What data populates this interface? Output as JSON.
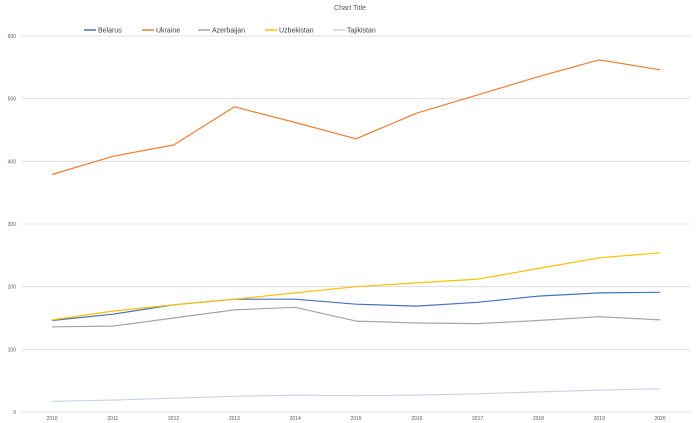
{
  "chart_data": {
    "type": "line",
    "title": "Chart Title",
    "x": [
      "2010",
      "2011",
      "2012",
      "2013",
      "2014",
      "2015",
      "2016",
      "2017",
      "2018",
      "2019",
      "2020"
    ],
    "ylim": [
      0,
      600
    ],
    "yticks": [
      "0",
      "100",
      "200",
      "300",
      "400",
      "500",
      "600"
    ],
    "grid": true,
    "legend_position": "top-left",
    "series": [
      {
        "name": "Belarus",
        "color": "#4472C4",
        "values": [
          146,
          156,
          171,
          180,
          180,
          172,
          169,
          175,
          185,
          190,
          191
        ]
      },
      {
        "name": "Ukraine",
        "color": "#ED7D31",
        "values": [
          379,
          408,
          426,
          487,
          462,
          436,
          477,
          506,
          535,
          562,
          546
        ]
      },
      {
        "name": "Azerbaijan",
        "color": "#A5A5A5",
        "values": [
          136,
          137,
          150,
          163,
          167,
          145,
          142,
          141,
          146,
          152,
          147
        ]
      },
      {
        "name": "Uzbekistan",
        "color": "#FFC000",
        "values": [
          147,
          161,
          171,
          180,
          190,
          200,
          206,
          212,
          229,
          246,
          254
        ]
      },
      {
        "name": "Tajikistan",
        "color": "#C9D3EC",
        "values": [
          17,
          19,
          22,
          25,
          27,
          26,
          27,
          29,
          32,
          35,
          37
        ]
      }
    ]
  }
}
